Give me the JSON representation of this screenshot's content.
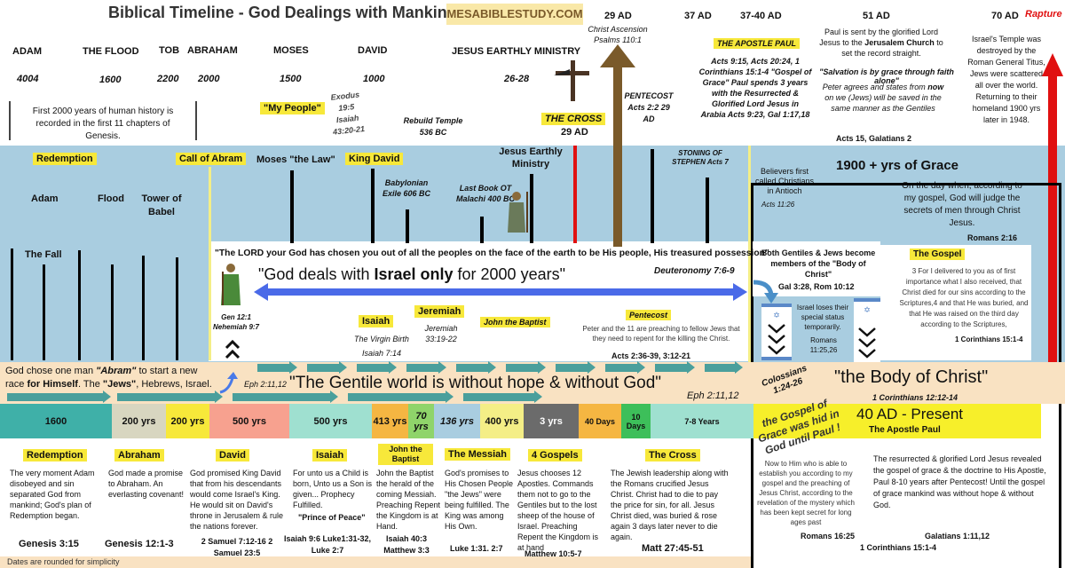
{
  "header": {
    "title": "Biblical Timeline  - God Dealings with Mankind",
    "site": "MESABIBLESTUDY.COM"
  },
  "top_events": [
    {
      "name": "ADAM",
      "year": "4004"
    },
    {
      "name": "THE FLOOD",
      "year": "1600"
    },
    {
      "name": "TOB",
      "year": "2200"
    },
    {
      "name": "ABRAHAM",
      "year": "2000"
    },
    {
      "name": "MOSES",
      "year": "1500"
    },
    {
      "name": "DAVID",
      "year": "1000"
    },
    {
      "name": "JESUS EARTHLY MINISTRY",
      "year": "26-28"
    }
  ],
  "first2000": "First 2000 years of human history is recorded in the first 11 chapters of Genesis.",
  "my_people": "\"My People\"",
  "exodus_ref": "Exodus 19:5 Isaiah 43:20-21",
  "rebuild_temple": "Rebuild Temple 536 BC",
  "the_cross": {
    "label": "THE CROSS",
    "year": "29 AD"
  },
  "ascension": {
    "year": "29 AD",
    "label": "Christ Ascension Psalms 110:1"
  },
  "pentecost_top": "PENTECOST Acts 2:2 29 AD",
  "ad37": "37 AD",
  "ad37_40": "37-40 AD",
  "apostle_paul": "THE APOSTLE PAUL",
  "paul_refs": "Acts 9:15, Acts 20:24, 1 Corinthians 15:1-4 \"Gospel of Grace\" Paul spends 3 years with the Resurrected & Glorified Lord Jesus in Arabia Acts 9:23, Gal 1:17,18",
  "ad51": "51 AD",
  "paul_sent": [
    "Paul is sent by the glorified Lord Jesus to the ",
    "Jerusalem Church",
    " to set the record straight."
  ],
  "salvation_grace": "\"Salvation is by grace through faith alone\"",
  "peter_agrees": [
    "Peter agrees and states from ",
    "now",
    " on we (Jews) will be saved in the same manner as the Gentiles"
  ],
  "acts15": "Acts 15, Galatians 2",
  "ad70": "70  AD",
  "rapture": "Rapture",
  "temple_destroyed": "Israel's Temple was destroyed by the Roman General Titus, Jews were scattered all over the world. Returning to their homeland 1900 yrs later in 1948.",
  "mid_labels": {
    "redemption": "Redemption",
    "call_abram": "Call of Abram",
    "moses_law": "Moses \"the Law\"",
    "king_david": "King David",
    "adam": "Adam",
    "flood": "Flood",
    "tower": "Tower of Babel",
    "fall": "The Fall",
    "babylonian": "Babylonian Exile 606 BC",
    "last_book": "Last Book OT Malachi 400 BC",
    "jesus_ministry": "Jesus Earthly Ministry",
    "stoning": "STONING OF STEPHEN Acts 7",
    "believers": "Believers first called Christians in Antioch",
    "believers_ref": "Acts 11:26"
  },
  "grace_1900": "1900 + yrs of Grace",
  "rom216": "On the day when, according to my gospel, God will judge the secrets of men through Christ Jesus.",
  "rom216_ref": "Romans 2:16",
  "the_gospel": "The Gospel",
  "cor15": "3 For I delivered to you as of first importance what I also received, that Christ died for our sins according to the Scriptures,4 and that He was buried, and that He was raised on the third day according to the Scriptures,",
  "cor15_ref": "1 Corinthians 15:1-4",
  "deut_quote": "\"The LORD your God has chosen you out of all the peoples on the face of the earth to be His people, His treasured possession\"",
  "deut_ref": "Deuteronomy 7:6-9",
  "israel_only": [
    "\"God deals with ",
    "Israel only",
    " for 2000 years\""
  ],
  "gen12": "Gen 12:1 Nehemiah 9:7",
  "both_gentiles": "Both Gentiles & Jews become members of the \"Body of Christ\"",
  "gal328": "Gal 3:28, Rom 10:12",
  "israel_loses": "Israel loses their special status temporarily.",
  "rom1125": "Romans 11:25,26",
  "isaiah_block": {
    "label": "Isaiah",
    "text": "The Virgin Birth",
    "ref": "Isaiah 7:14"
  },
  "jeremiah_block": {
    "label": "Jeremiah",
    "text": "Jeremiah 33:19-22"
  },
  "john_baptist": "John the Baptist",
  "pentecost_block": {
    "label": "Pentecost",
    "text": "Peter and the 11 are preaching to fellow Jews that they need to repent for the killing the Christ.",
    "ref": "Acts 2:36-39, 3:12-21"
  },
  "god_chose": [
    "God chose one man ",
    "\"Abram\"",
    " to start a new race ",
    "for Himself",
    ". The ",
    "\"Jews\"",
    ", Hebrews, Israel."
  ],
  "eph_small": "Eph 2:11,12",
  "gentile_world": "\"The Gentile world is without hope & without God\"",
  "eph_right": "Eph 2:11,12",
  "colossians": "Colossians 1:24-26",
  "body_christ": "\"the Body of Christ\"",
  "cor1212": "1 Corinthians 12:12-14",
  "timeline_band": [
    {
      "label": "1600",
      "color": "#3fb0a8"
    },
    {
      "label": "200 yrs",
      "color": "#d8d6c0"
    },
    {
      "label": "200 yrs",
      "color": "#f7e83a"
    },
    {
      "label": "500 yrs",
      "color": "#f7a18f"
    },
    {
      "label": "500 yrs",
      "color": "#9fe0d0"
    },
    {
      "label": "413 yrs",
      "color": "#f5b642"
    },
    {
      "label": "70 yrs",
      "color": "#8fd46a"
    },
    {
      "label": "136 yrs",
      "color": "#a9cde0"
    },
    {
      "label": "400 yrs",
      "color": "#f4ee86"
    },
    {
      "label": "3 yrs",
      "color": "#6b6b6b"
    },
    {
      "label": "40 Days",
      "color": "#f5b642"
    },
    {
      "label": "10 Days",
      "color": "#3dbf5a"
    },
    {
      "label": "7-8 Years",
      "color": "#9fe0d0"
    }
  ],
  "gospel_hid": "the Gospel of Grace was hid in God until Paul !",
  "present": "40 AD - Present",
  "present_sub": "The Apostle Paul",
  "bottom_cols": [
    {
      "title": "Redemption",
      "text": "The very moment  Adam disobeyed and sin separated God from mankind; God's plan of Redemption began.",
      "ref": "Genesis 3:15"
    },
    {
      "title": "Abraham",
      "text": "God made a promise to Abraham. An everlasting covenant!",
      "ref": "Genesis 12:1-3"
    },
    {
      "title": "David",
      "text": "God promised King David that from his descendants would come Israel's King. He would sit on David's throne in Jerusalem & rule the nations  forever.",
      "ref": "2 Samuel 7:12-16 2 Samuel 23:5"
    },
    {
      "title": "Isaiah",
      "text": "For unto us a Child is born, Unto us a Son is given... Prophecy Fulfilled.",
      "sub": "\"Prince of Peace\"",
      "ref": "Isaiah 9:6 Luke1:31-32, Luke 2:7"
    },
    {
      "title": "John the Baptist",
      "text": "John the Baptist the herald of the coming Messiah. Preaching Repent the Kingdom is at Hand.",
      "ref": "Isaiah 40:3 Matthew 3:3"
    },
    {
      "title": "The Messiah",
      "text": "God's promises to His Chosen People \"the Jews\" were being fulfilled. The King was among His Own.",
      "ref": "Luke 1:31. 2:7"
    },
    {
      "title": "4 Gospels",
      "text": "Jesus chooses 12 Apostles. Commands them not to go to the Gentiles but to the lost sheep of the house of Israel. Preaching Repent the Kingdom is at hand",
      "ref": "Matthew 10:5-7"
    },
    {
      "title": "The Cross",
      "text": "The Jewish leadership along with the Romans crucified Jesus Christ. Christ had to die to pay the price for sin, for all. Jesus Christ died, was buried & rose again 3 days later never to die again.",
      "ref": "Matt 27:45-51"
    }
  ],
  "now_to_him": "Now to Him who is able to establish you according to my gospel and the preaching of Jesus Christ, according to the revelation of the mystery which has been kept secret for long ages past",
  "rom1625": "Romans 16:25",
  "resurrected": "The resurrected & glorified Lord Jesus revealed the gospel of grace & the doctrine to His Apostle, Paul 8-10 years after Pentecost! Until the gospel of grace mankind was without hope & without God.",
  "gal1": "Galatians 1:11,12",
  "cor1514": "1 Corinthians 15:1-4",
  "footer": "Dates are rounded for simplicity"
}
